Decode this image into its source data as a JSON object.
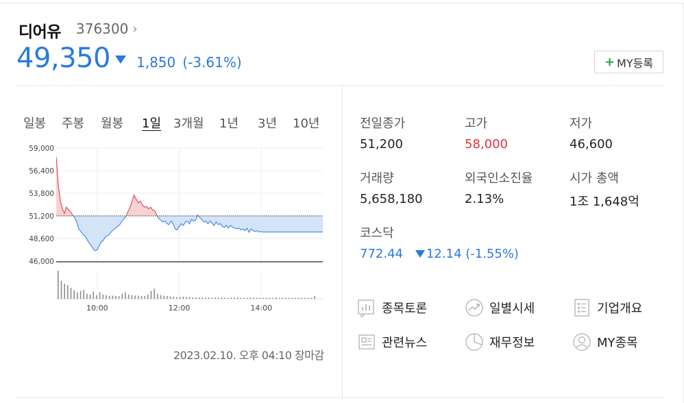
{
  "stock": {
    "name": "디어유",
    "code": "376300",
    "price": "49,350",
    "change_amount": "1,850",
    "change_percent": "(-3.61%)",
    "my_button_label": "MY등록"
  },
  "periods": [
    "일봉",
    "주봉",
    "월봉",
    "1일",
    "3개월",
    "1년",
    "3년",
    "10년"
  ],
  "active_period": "1일",
  "timestamp": "2023.02.10. 오후 04:10 장마감",
  "stats": {
    "prev_close": {
      "label": "전일종가",
      "value": "51,200"
    },
    "high": {
      "label": "고가",
      "value": "58,000"
    },
    "low": {
      "label": "저가",
      "value": "46,600"
    },
    "volume": {
      "label": "거래량",
      "value": "5,658,180"
    },
    "foreign_ratio": {
      "label": "외국인소진율",
      "value": "2.13%"
    },
    "market_cap": {
      "label": "시가 총액",
      "value": "1조 1,648억"
    },
    "kosdaq": {
      "label": "코스닥",
      "value": "772.44",
      "change": "12.14 (-1.55%)"
    }
  },
  "links": [
    {
      "label": "종목토론",
      "icon": "chart-board-icon"
    },
    {
      "label": "일별시세",
      "icon": "trend-circle-icon"
    },
    {
      "label": "기업개요",
      "icon": "list-doc-icon"
    },
    {
      "label": "관련뉴스",
      "icon": "newspaper-icon"
    },
    {
      "label": "재무정보",
      "icon": "pie-chart-icon"
    },
    {
      "label": "MY종목",
      "icon": "user-circle-icon"
    }
  ],
  "colors": {
    "up": "#e0323c",
    "down": "#2a79e0",
    "up_fill": "#f6d2d2",
    "down_fill": "#d3e3f8",
    "volume": "#8c8c8c"
  },
  "chart_data": {
    "type": "area",
    "y_ticks": [
      "59,000",
      "56,400",
      "53,800",
      "51,200",
      "48,600",
      "46,000"
    ],
    "ylim": [
      46000,
      59000
    ],
    "baseline": 51200,
    "x_ticks": [
      "10:00",
      "12:00",
      "14:00"
    ],
    "x_range_minutes": [
      540,
      930
    ],
    "price_series": [
      [
        540,
        58000
      ],
      [
        543,
        54800
      ],
      [
        546,
        53000
      ],
      [
        549,
        52000
      ],
      [
        552,
        51500
      ],
      [
        555,
        52200
      ],
      [
        558,
        51900
      ],
      [
        561,
        51700
      ],
      [
        564,
        51300
      ],
      [
        567,
        51000
      ],
      [
        570,
        50500
      ],
      [
        573,
        49700
      ],
      [
        576,
        49400
      ],
      [
        579,
        49100
      ],
      [
        582,
        48900
      ],
      [
        585,
        48500
      ],
      [
        588,
        48100
      ],
      [
        591,
        47800
      ],
      [
        594,
        47400
      ],
      [
        597,
        47200
      ],
      [
        600,
        47300
      ],
      [
        603,
        47800
      ],
      [
        606,
        48200
      ],
      [
        609,
        48400
      ],
      [
        612,
        48800
      ],
      [
        615,
        48900
      ],
      [
        618,
        49100
      ],
      [
        621,
        49400
      ],
      [
        624,
        49600
      ],
      [
        627,
        49800
      ],
      [
        630,
        50000
      ],
      [
        633,
        50200
      ],
      [
        636,
        50600
      ],
      [
        639,
        50900
      ],
      [
        642,
        51100
      ],
      [
        645,
        51700
      ],
      [
        648,
        52200
      ],
      [
        651,
        52900
      ],
      [
        654,
        53600
      ],
      [
        657,
        53100
      ],
      [
        660,
        52700
      ],
      [
        663,
        52900
      ],
      [
        666,
        52500
      ],
      [
        669,
        52200
      ],
      [
        672,
        52300
      ],
      [
        675,
        52000
      ],
      [
        678,
        52200
      ],
      [
        681,
        51900
      ],
      [
        684,
        51800
      ],
      [
        687,
        51300
      ],
      [
        690,
        50900
      ],
      [
        693,
        50700
      ],
      [
        696,
        50500
      ],
      [
        699,
        50600
      ],
      [
        702,
        50300
      ],
      [
        705,
        50200
      ],
      [
        708,
        50600
      ],
      [
        711,
        50300
      ],
      [
        714,
        49700
      ],
      [
        717,
        49600
      ],
      [
        720,
        50000
      ],
      [
        723,
        50300
      ],
      [
        726,
        50100
      ],
      [
        729,
        50500
      ],
      [
        732,
        50600
      ],
      [
        735,
        50300
      ],
      [
        738,
        50800
      ],
      [
        741,
        50600
      ],
      [
        744,
        50700
      ],
      [
        747,
        51300
      ],
      [
        750,
        51000
      ],
      [
        753,
        50800
      ],
      [
        756,
        50500
      ],
      [
        759,
        50600
      ],
      [
        762,
        50300
      ],
      [
        765,
        50600
      ],
      [
        768,
        50400
      ],
      [
        771,
        50100
      ],
      [
        774,
        50500
      ],
      [
        777,
        50200
      ],
      [
        780,
        50300
      ],
      [
        783,
        50000
      ],
      [
        786,
        49900
      ],
      [
        789,
        50100
      ],
      [
        792,
        49800
      ],
      [
        795,
        50100
      ],
      [
        798,
        49900
      ],
      [
        801,
        49800
      ],
      [
        804,
        49700
      ],
      [
        807,
        49800
      ],
      [
        810,
        49600
      ],
      [
        813,
        49700
      ],
      [
        816,
        49500
      ],
      [
        819,
        49800
      ],
      [
        822,
        49300
      ],
      [
        825,
        49700
      ],
      [
        828,
        49500
      ],
      [
        831,
        49400
      ],
      [
        834,
        49500
      ],
      [
        837,
        49350
      ],
      [
        840,
        49400
      ],
      [
        843,
        49350
      ]
    ],
    "volume_series": [
      78,
      50,
      42,
      38,
      30,
      24,
      18,
      22,
      25,
      14,
      12,
      20,
      10,
      18,
      12,
      10,
      8,
      9,
      8,
      7,
      14,
      18,
      12,
      10,
      9,
      9,
      8,
      8,
      12,
      22,
      28,
      14,
      10,
      9,
      8,
      7,
      6,
      5,
      5,
      6,
      5,
      5,
      4,
      4,
      4,
      4,
      3,
      4,
      3,
      4,
      3,
      4,
      3,
      3,
      4,
      3,
      4,
      3,
      3,
      3,
      4,
      3,
      3,
      3,
      3,
      3,
      3,
      3,
      4,
      3,
      3,
      3,
      3,
      3,
      3,
      3,
      3,
      3,
      3,
      3,
      8
    ]
  }
}
